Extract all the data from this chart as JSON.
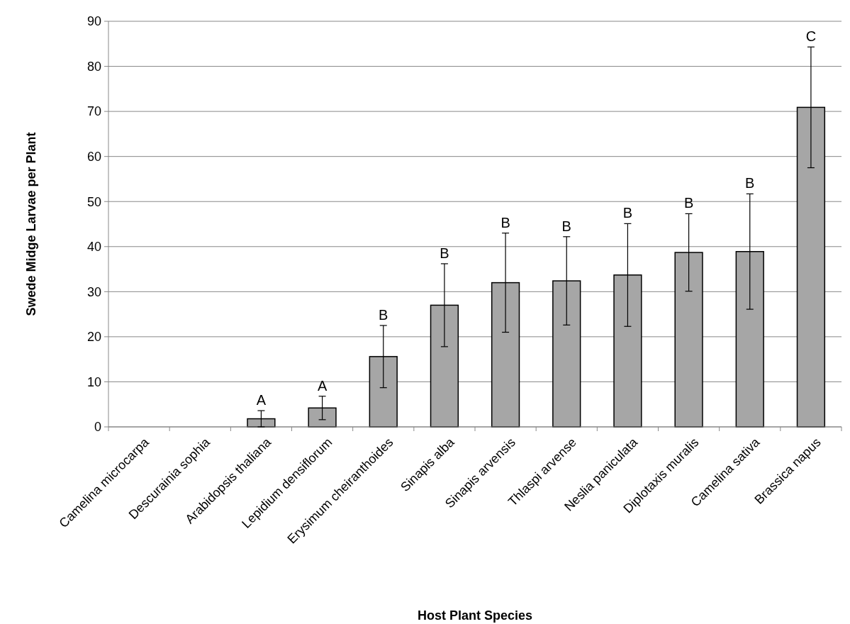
{
  "chart_data": {
    "type": "bar",
    "xlabel": "Host Plant Species",
    "ylabel": "Swede Midge Larvae per Plant",
    "categories": [
      "Camelina microcarpa",
      "Descurainia sophia",
      "Arabidopsis thaliana",
      "Lepidium densiflorum",
      "Erysimum cheiranthoides",
      "Sinapis alba",
      "Sinapis arvensis",
      "Thlaspi arvense",
      "Neslia paniculata",
      "Diplotaxis muralis",
      "Camelina sativa",
      "Brassica napus"
    ],
    "values": [
      0,
      0,
      1.8,
      4.2,
      15.6,
      27,
      32,
      32.4,
      33.7,
      38.7,
      38.9,
      70.9
    ],
    "errors": [
      null,
      null,
      1.8,
      2.6,
      6.9,
      9.2,
      11,
      9.8,
      11.4,
      8.6,
      12.8,
      13.4
    ],
    "color": "#a6a6a6",
    "ylim": [
      0,
      90
    ],
    "yticks": [
      0,
      10,
      20,
      30,
      40,
      50,
      60,
      70,
      80,
      90
    ],
    "grid": "y",
    "annotations": [
      "A",
      "A",
      "B",
      "B",
      "B",
      "B",
      "B",
      "B",
      "B",
      "C"
    ]
  }
}
